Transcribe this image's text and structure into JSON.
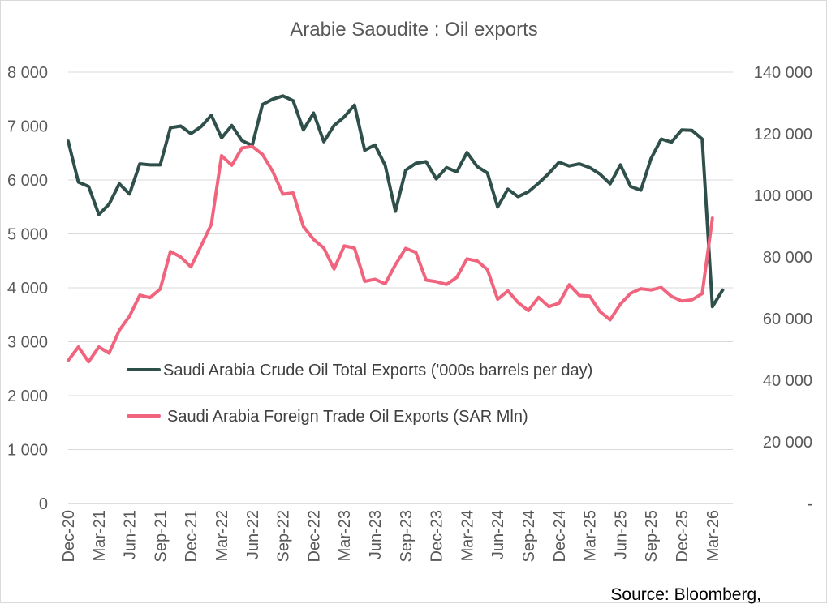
{
  "chart_data": {
    "type": "line",
    "title": "Arabie Saoudite : Oil exports",
    "source": "Source: Bloomberg,",
    "y_left": {
      "min": 0,
      "max": 8000,
      "ticks": [
        "0",
        "1 000",
        "2 000",
        "3 000",
        "4 000",
        "5 000",
        "6 000",
        "7 000",
        "8 000"
      ]
    },
    "y_right": {
      "min": 0,
      "max": 140000,
      "ticks": [
        "-",
        "20 000",
        "40 000",
        "60 000",
        "80 000",
        "100 000",
        "120 000",
        "140 000"
      ]
    },
    "x_tick_labels": [
      "Dec-20",
      "Mar-21",
      "Jun-21",
      "Sep-21",
      "Dec-21",
      "Mar-22",
      "Jun-22",
      "Sep-22",
      "Dec-22",
      "Mar-23",
      "Jun-23",
      "Sep-23",
      "Dec-23",
      "Mar-24",
      "Jun-24",
      "Sep-24",
      "Dec-24",
      "Mar-25",
      "Jun-25",
      "Sep-25",
      "Dec-25",
      "Mar-26"
    ],
    "x_start": "Dec-20",
    "x_end": "Apr-26",
    "grid": "horizontal",
    "legend_position": "inside-left",
    "series": [
      {
        "name": "Saudi Arabia Crude Oil Total Exports ('000s barrels per day)",
        "axis": "left",
        "color": "#2f4f4a",
        "values": [
          6720,
          5960,
          5880,
          5360,
          5550,
          5930,
          5740,
          6300,
          6280,
          6280,
          6970,
          7000,
          6860,
          6990,
          7200,
          6780,
          7010,
          6730,
          6640,
          7400,
          7500,
          7560,
          7470,
          6930,
          7240,
          6710,
          7010,
          7170,
          7390,
          6550,
          6650,
          6270,
          5420,
          6180,
          6310,
          6340,
          6020,
          6230,
          6150,
          6510,
          6250,
          6130,
          5500,
          5830,
          5690,
          5780,
          5940,
          6120,
          6330,
          6260,
          6300,
          6230,
          6110,
          5930,
          6280,
          5880,
          5810,
          6400,
          6760,
          6700,
          6930,
          6920,
          6760,
          3650,
          3960
        ]
      },
      {
        "name": "Saudi Arabia Foreign Trade Oil Exports  (SAR Mln)",
        "axis": "right",
        "color": "#f0647e",
        "values": [
          46400,
          50800,
          46000,
          50800,
          48800,
          56200,
          60800,
          67600,
          66800,
          69600,
          81800,
          80000,
          76800,
          83600,
          90600,
          112900,
          109800,
          115400,
          115900,
          113300,
          107800,
          100400,
          100800,
          89900,
          85700,
          82900,
          76100,
          83600,
          82900,
          72100,
          72800,
          71300,
          77500,
          82800,
          81500,
          72500,
          72000,
          71100,
          73400,
          79400,
          78700,
          75900,
          66300,
          69000,
          65200,
          62600,
          66900,
          63900,
          65000,
          71000,
          67500,
          67300,
          62300,
          59600,
          64700,
          68200,
          69700,
          69300,
          70100,
          67200,
          65700,
          66100,
          68100,
          92600
        ]
      }
    ]
  }
}
